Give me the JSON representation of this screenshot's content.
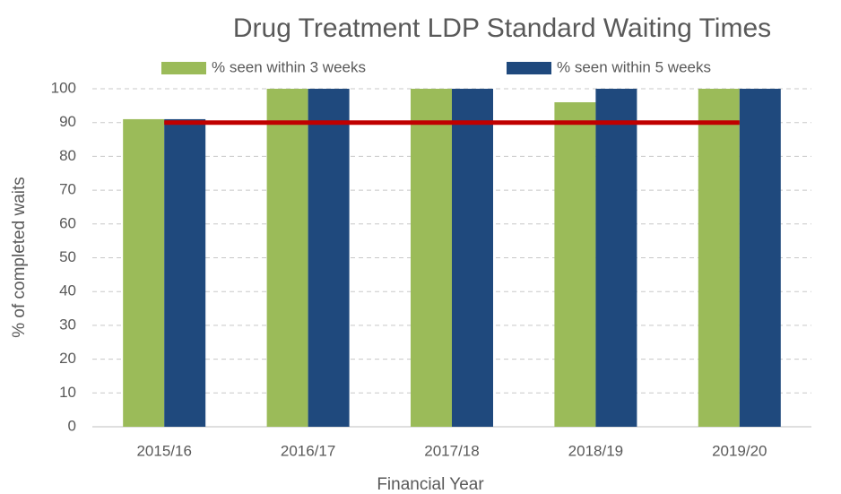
{
  "chart_data": {
    "type": "bar",
    "title": "Drug Treatment LDP Standard Waiting Times",
    "x_label": "Financial Year",
    "y_label": "% of completed waits",
    "categories": [
      "2015/16",
      "2016/17",
      "2017/18",
      "2018/19",
      "2019/20"
    ],
    "series": [
      {
        "name": "% seen within 3 weeks",
        "color": "#9bbb59",
        "values": [
          91,
          100,
          100,
          96,
          100
        ]
      },
      {
        "name": "% seen within 5 weeks",
        "color": "#1f497d",
        "values": [
          91,
          100,
          100,
          100,
          100
        ]
      }
    ],
    "standard_line": {
      "color": "#c00000",
      "values": [
        90,
        90,
        90,
        90,
        90
      ]
    },
    "ylim": [
      0,
      100
    ],
    "yticks": [
      0,
      10,
      20,
      30,
      40,
      50,
      60,
      70,
      80,
      90,
      100
    ],
    "grid": true,
    "legend": "top"
  }
}
